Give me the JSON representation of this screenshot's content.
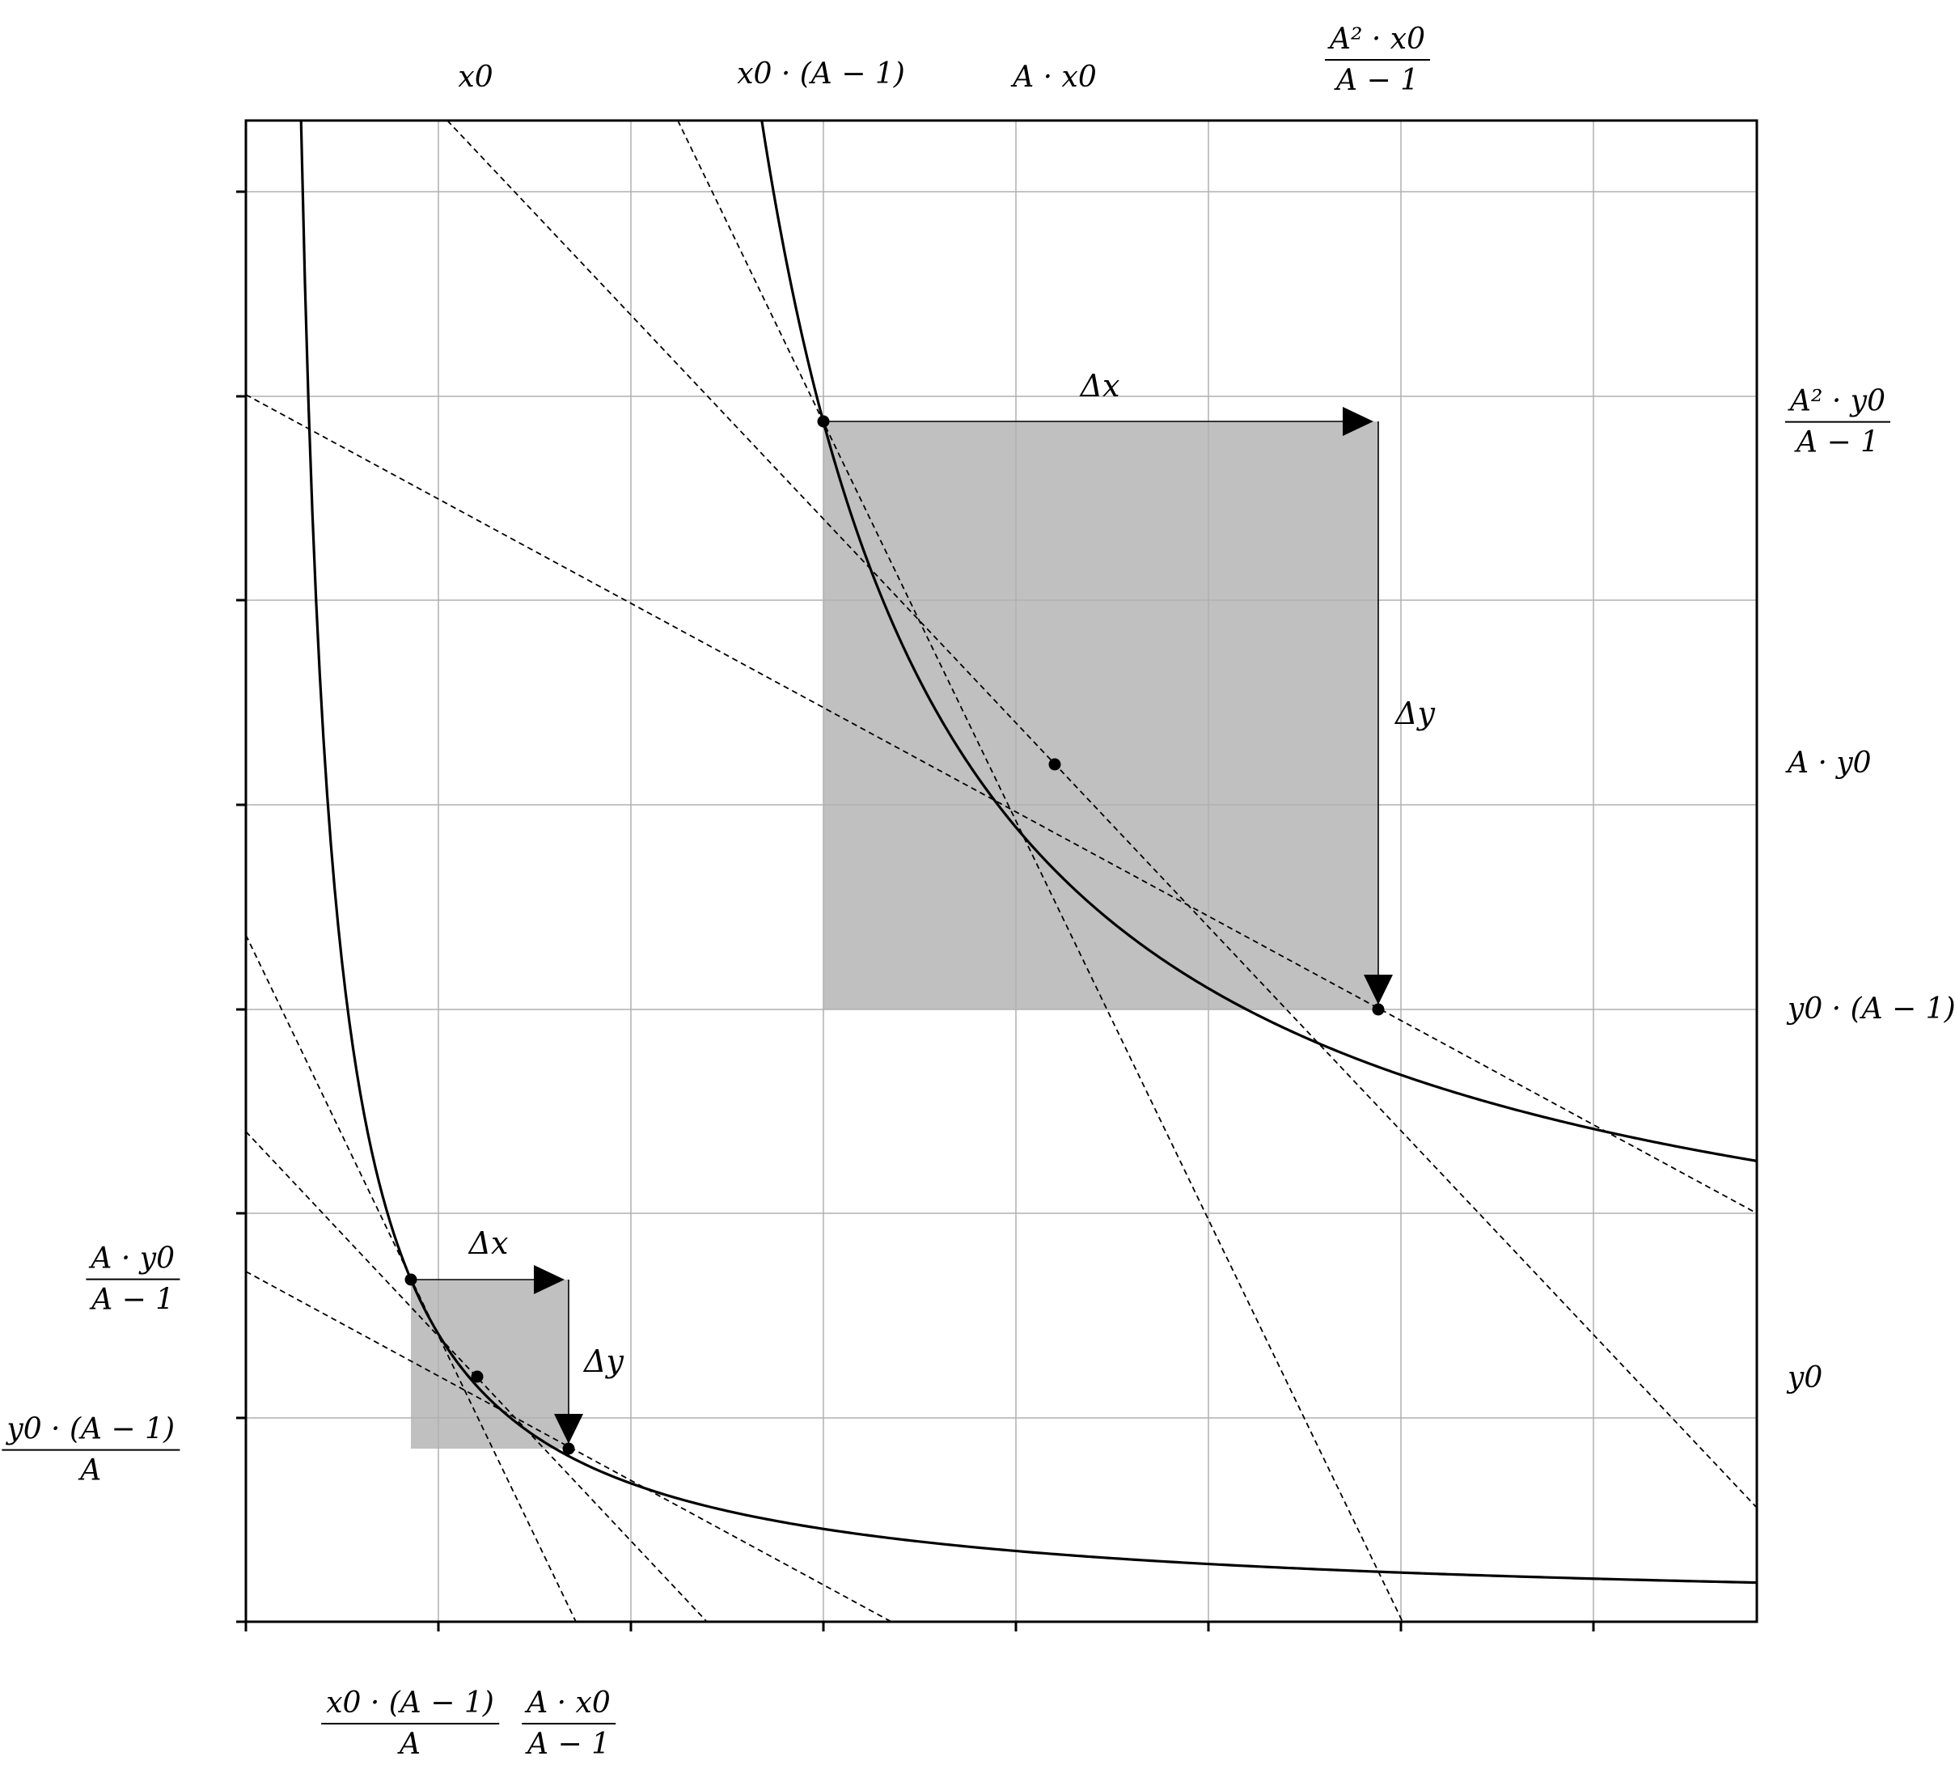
{
  "figure": {
    "top_labels": {
      "x0": "x0",
      "x0_A_minus_1": "x0 · (A − 1)",
      "A_x0": "A · x0",
      "A2_x0_over_A_minus_1": {
        "num": "A² · x0",
        "den": "A − 1"
      }
    },
    "right_labels": {
      "A2_y0_over_A_minus_1": {
        "num": "A² · y0",
        "den": "A − 1"
      },
      "A_y0": "A · y0",
      "y0_A_minus_1": "y0 · (A − 1)",
      "y0": "y0"
    },
    "left_labels": {
      "A_y0_over_A_minus_1": {
        "num": "A · y0",
        "den": "A − 1"
      },
      "y0_A_minus_1_over_A": {
        "num": "y0 · (A − 1)",
        "den": "A"
      }
    },
    "bottom_labels": {
      "x0_A_minus_1_over_A": {
        "num": "x0 · (A − 1)",
        "den": "A"
      },
      "A_x0_over_A_minus_1": {
        "num": "A · x0",
        "den": "A − 1"
      }
    },
    "annotations": {
      "delta_x_large": "Δx",
      "delta_y_large": "Δy",
      "delta_x_small": "Δx",
      "delta_y_small": "Δy"
    },
    "colors": {
      "shade": "#c0c0c0",
      "grid": "#b0b0b0",
      "curve": "#000000"
    }
  }
}
